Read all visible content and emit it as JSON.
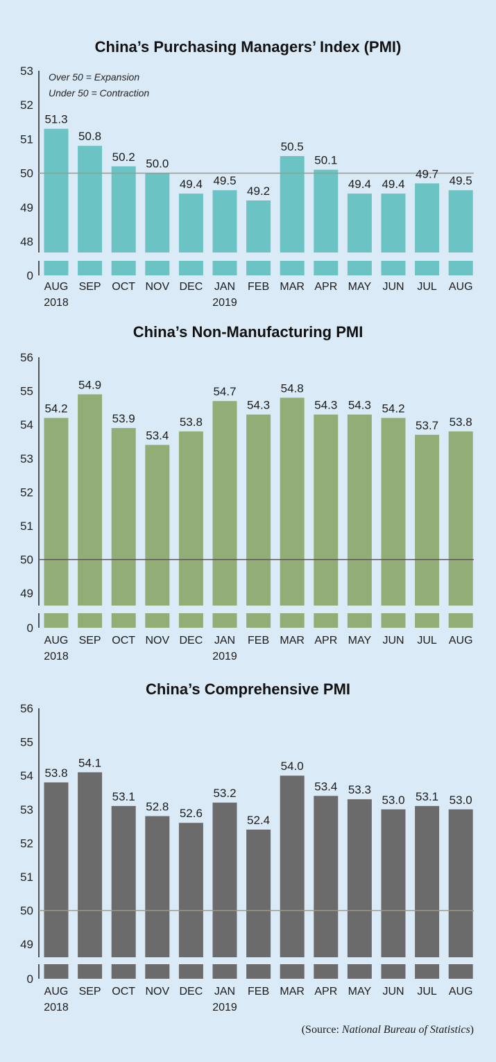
{
  "chart_data": [
    {
      "type": "bar",
      "title": "China’s Purchasing Managers’ Index (PMI)",
      "notes": [
        "Over 50 = Expansion",
        "Under 50 = Contraction"
      ],
      "categories": [
        "AUG",
        "SEP",
        "OCT",
        "NOV",
        "DEC",
        "JAN",
        "FEB",
        "MAR",
        "APR",
        "MAY",
        "JUN",
        "JUL",
        "AUG"
      ],
      "year_labels": [
        "2018",
        "",
        "",
        "",
        "",
        "2019",
        "",
        "",
        "",
        "",
        "",
        "",
        ""
      ],
      "values": [
        51.3,
        50.8,
        50.2,
        50.0,
        49.4,
        49.5,
        49.2,
        50.5,
        50.1,
        49.4,
        49.4,
        49.7,
        49.5
      ],
      "value_labels": [
        "51.3",
        "50.8",
        "50.2",
        "50.0",
        "49.4",
        "49.5",
        "49.2",
        "50.5",
        "50.1",
        "49.4",
        "49.4",
        "49.7",
        "49.5"
      ],
      "yticks": [
        "53",
        "52",
        "51",
        "50",
        "49",
        "48",
        "0"
      ],
      "ylim": [
        48,
        53
      ],
      "axis_break": true,
      "reference_line": 50,
      "color": "#6cc3c3"
    },
    {
      "type": "bar",
      "title": "China’s Non-Manufacturing PMI",
      "categories": [
        "AUG",
        "SEP",
        "OCT",
        "NOV",
        "DEC",
        "JAN",
        "FEB",
        "MAR",
        "APR",
        "MAY",
        "JUN",
        "JUL",
        "AUG"
      ],
      "year_labels": [
        "2018",
        "",
        "",
        "",
        "",
        "2019",
        "",
        "",
        "",
        "",
        "",
        "",
        ""
      ],
      "values": [
        54.2,
        54.9,
        53.9,
        53.4,
        53.8,
        54.7,
        54.3,
        54.8,
        54.3,
        54.3,
        54.2,
        53.7,
        53.8
      ],
      "value_labels": [
        "54.2",
        "54.9",
        "53.9",
        "53.4",
        "53.8",
        "54.7",
        "54.3",
        "54.8",
        "54.3",
        "54.3",
        "54.2",
        "53.7",
        "53.8"
      ],
      "yticks": [
        "56",
        "55",
        "54",
        "53",
        "52",
        "51",
        "50",
        "49",
        "0"
      ],
      "ylim": [
        49,
        56
      ],
      "axis_break": true,
      "reference_line": 50,
      "color": "#93ad76"
    },
    {
      "type": "bar",
      "title": "China’s Comprehensive PMI",
      "categories": [
        "AUG",
        "SEP",
        "OCT",
        "NOV",
        "DEC",
        "JAN",
        "FEB",
        "MAR",
        "APR",
        "MAY",
        "JUN",
        "JUL",
        "AUG"
      ],
      "year_labels": [
        "2018",
        "",
        "",
        "",
        "",
        "2019",
        "",
        "",
        "",
        "",
        "",
        "",
        ""
      ],
      "values": [
        53.8,
        54.1,
        53.1,
        52.8,
        52.6,
        53.2,
        52.4,
        54.0,
        53.4,
        53.3,
        53.0,
        53.1,
        53.0
      ],
      "value_labels": [
        "53.8",
        "54.1",
        "53.1",
        "52.8",
        "52.6",
        "53.2",
        "52.4",
        "54.0",
        "53.4",
        "53.3",
        "53.0",
        "53.1",
        "53.0"
      ],
      "yticks": [
        "56",
        "55",
        "54",
        "53",
        "52",
        "51",
        "50",
        "49",
        "0"
      ],
      "ylim": [
        49,
        56
      ],
      "axis_break": true,
      "reference_line": 50,
      "color": "#6b6b6b"
    }
  ],
  "source": {
    "prefix": "(Source: ",
    "name": "National Bureau of Statistics",
    "suffix": ")"
  }
}
